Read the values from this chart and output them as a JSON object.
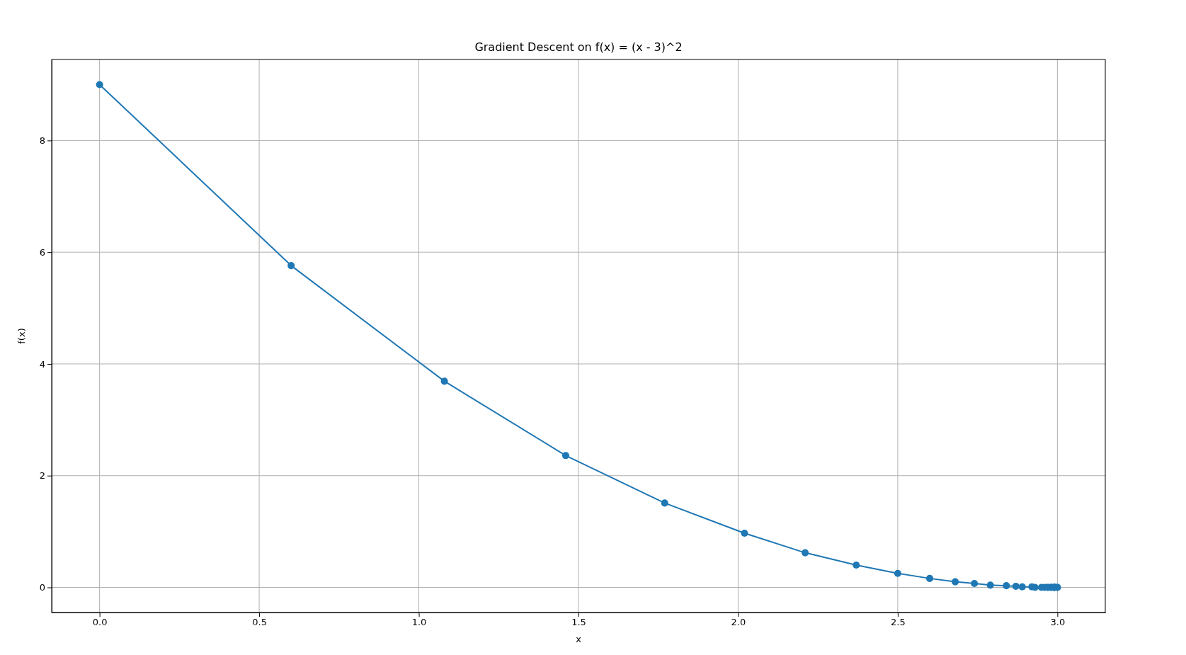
{
  "chart_data": {
    "type": "line",
    "title": "Gradient Descent on f(x) = (x - 3)^2",
    "xlabel": "x",
    "ylabel": "f(x)",
    "x": [
      0,
      0.6,
      1.08,
      1.46,
      1.77,
      2.02,
      2.21,
      2.37,
      2.5,
      2.6,
      2.68,
      2.74,
      2.79,
      2.84,
      2.87,
      2.89,
      2.92,
      2.93,
      2.95,
      2.96,
      2.97,
      2.97,
      2.98,
      2.98,
      2.99,
      2.99,
      2.99,
      2.99,
      2.99,
      3.0,
      3.0
    ],
    "series": [
      {
        "color": "#1f77b4",
        "values": [
          9,
          5.76,
          3.69,
          2.36,
          1.51,
          0.97,
          0.62,
          0.4,
          0.25,
          0.16,
          0.1,
          0.07,
          0.04,
          0.03,
          0.02,
          0.01,
          0.01,
          0,
          0,
          0,
          0,
          0,
          0,
          0,
          0,
          0,
          0,
          0,
          0,
          0,
          0
        ]
      }
    ],
    "xlim": [
      -0.15,
      3.15
    ],
    "ylim": [
      -0.45,
      9.45
    ],
    "xticks": [
      {
        "value": 0,
        "label": "0.0"
      },
      {
        "value": 0.5,
        "label": "0.5"
      },
      {
        "value": 1,
        "label": "1.0"
      },
      {
        "value": 1.5,
        "label": "1.5"
      },
      {
        "value": 2,
        "label": "2.0"
      },
      {
        "value": 2.5,
        "label": "2.5"
      },
      {
        "value": 3,
        "label": "3.0"
      }
    ],
    "yticks": [
      0,
      2,
      4,
      6,
      8
    ],
    "grid": true,
    "marker": "circle",
    "line_style": "solid"
  }
}
